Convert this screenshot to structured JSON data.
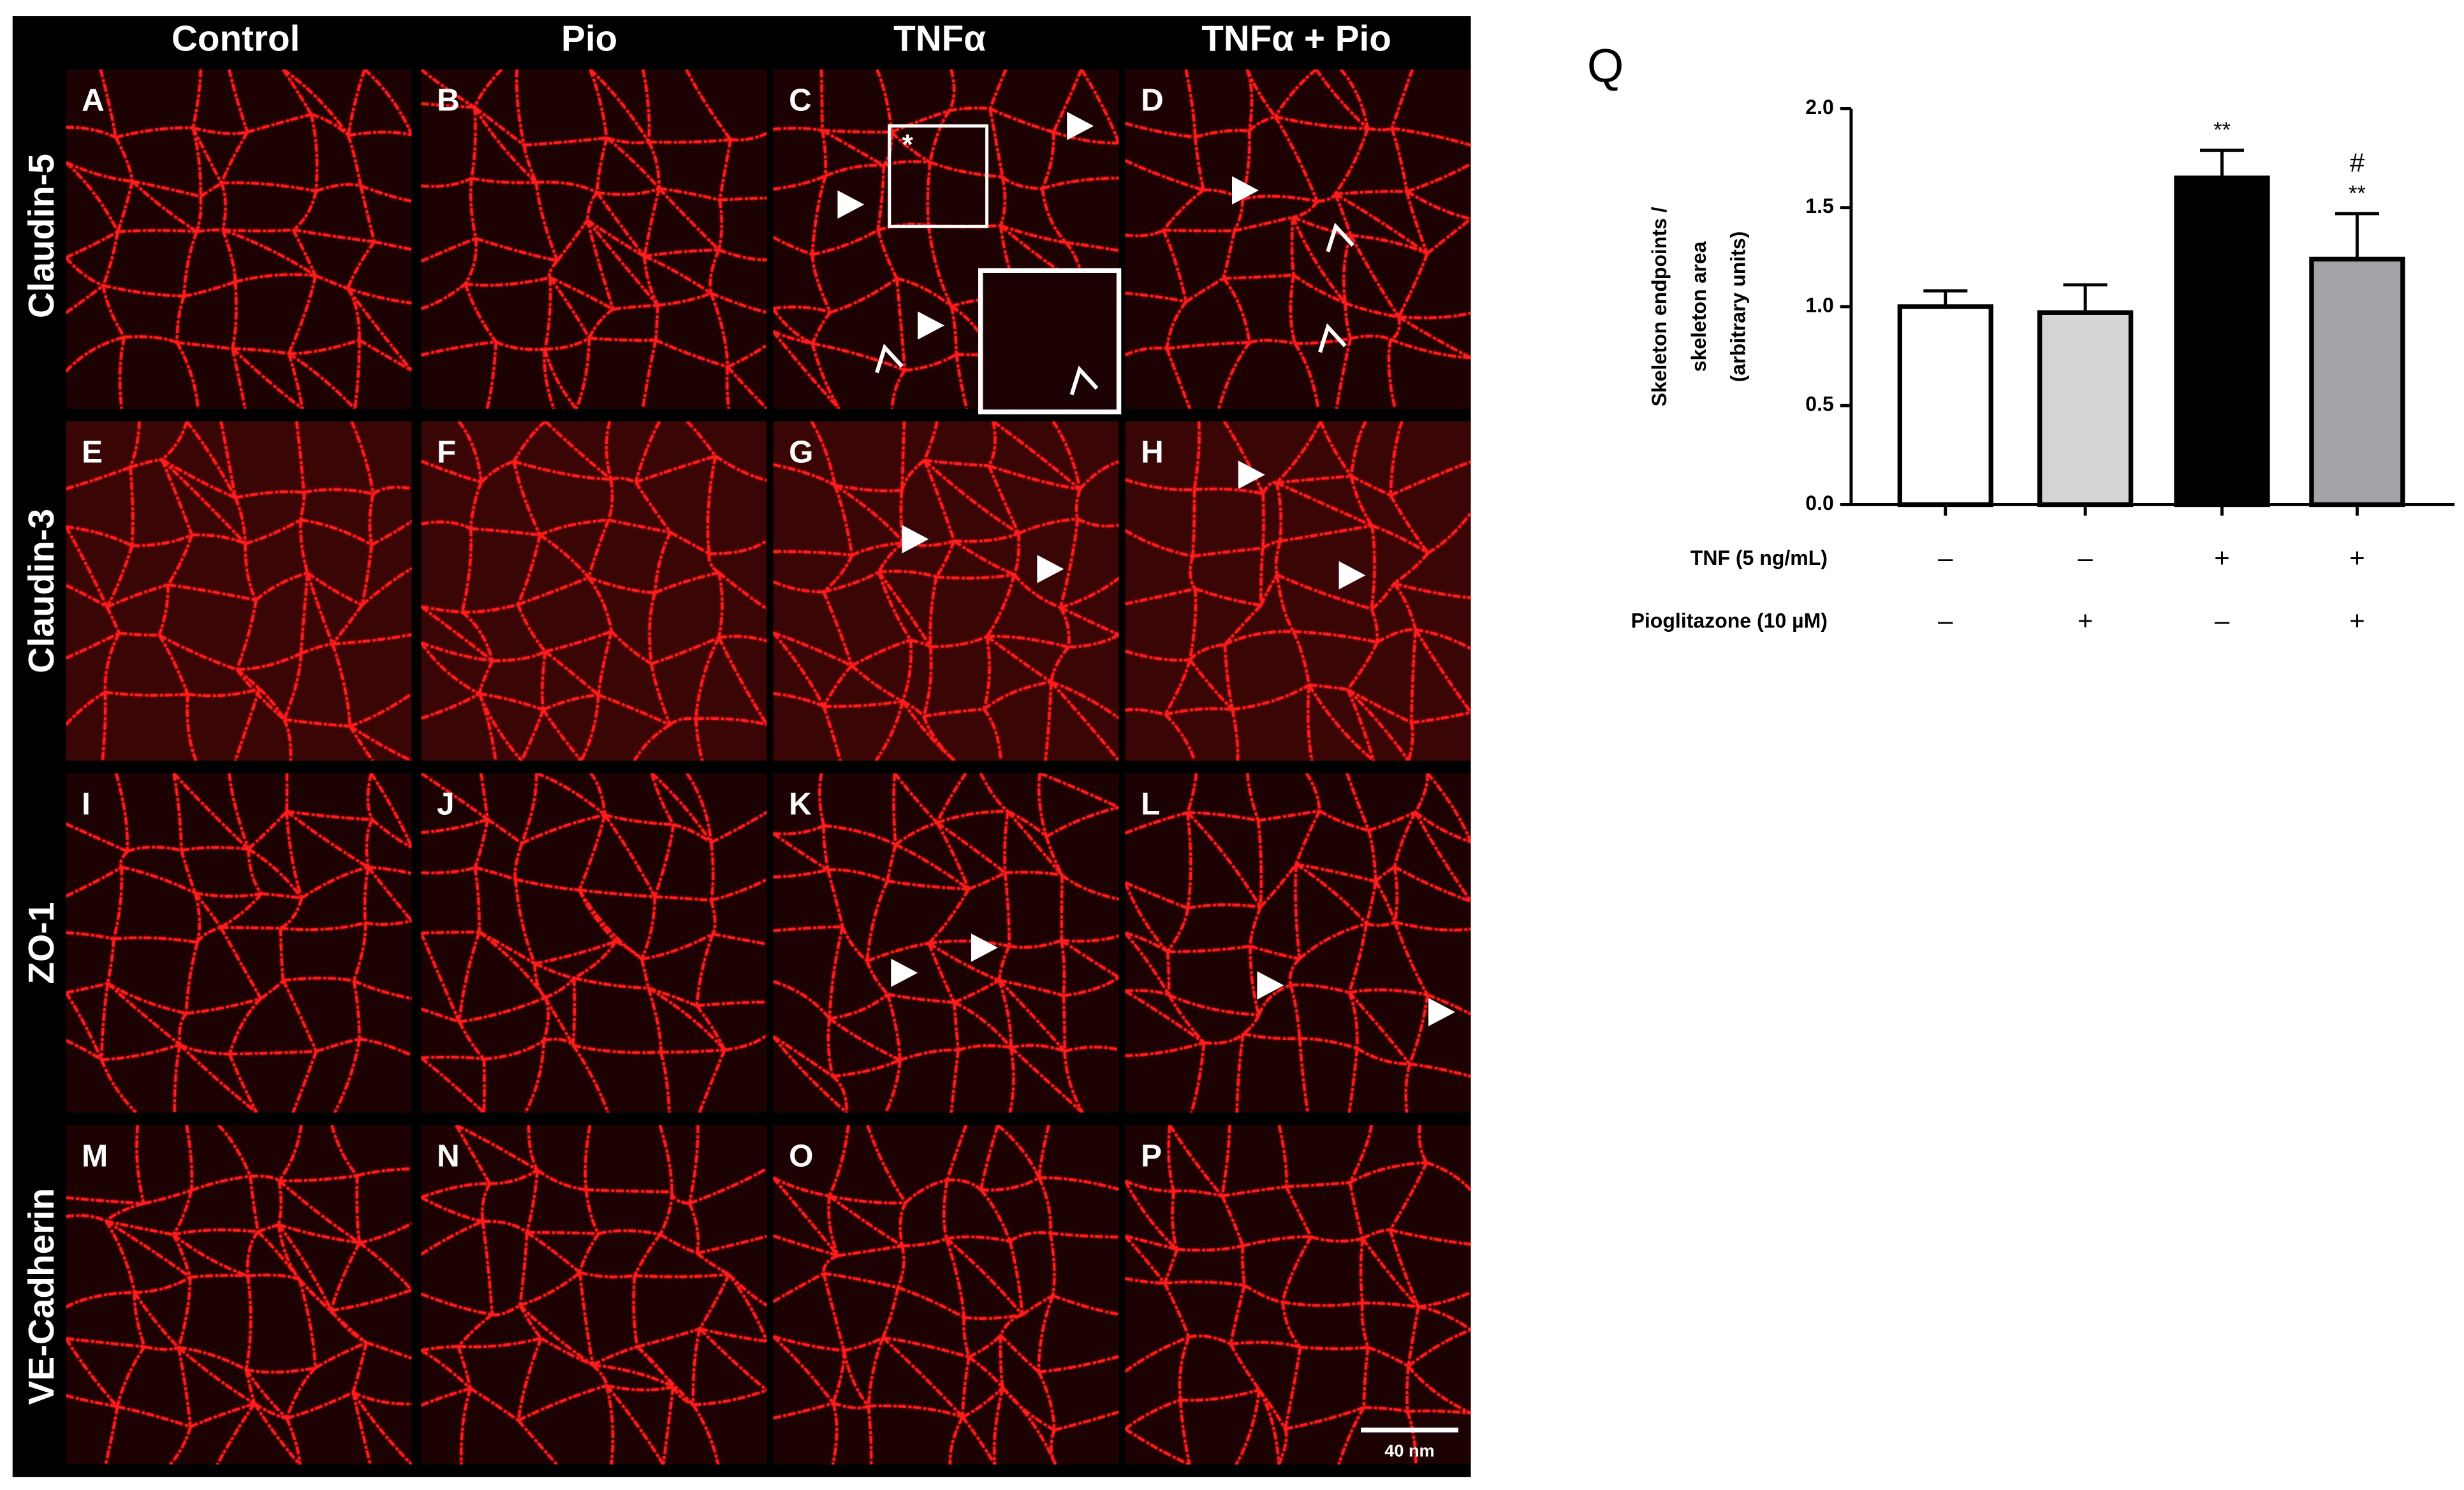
{
  "figure": {
    "columns": [
      "Control",
      "Pio",
      "TNFα",
      "TNFα + Pio"
    ],
    "rows": [
      "Claudin-5",
      "Claudin-3",
      "ZO-1",
      "VE-Cadherin"
    ],
    "panels": [
      [
        "A",
        "B",
        "C",
        "D"
      ],
      [
        "E",
        "F",
        "G",
        "H"
      ],
      [
        "I",
        "J",
        "K",
        "L"
      ],
      [
        "M",
        "N",
        "O",
        "P"
      ]
    ],
    "inset_marker": "*",
    "scale_bar": "40 nm"
  },
  "chart_data": {
    "type": "bar",
    "panel_label": "Q",
    "ylabel": [
      "Skeleton endpoints /",
      "skeleton area",
      "(arbitrary units)"
    ],
    "categories": [
      null,
      null,
      null,
      null
    ],
    "values": [
      1.0,
      0.97,
      1.65,
      1.24
    ],
    "errors": [
      0.08,
      0.14,
      0.14,
      0.23
    ],
    "colors": [
      "#ffffff",
      "#d4d4d4",
      "#000000",
      "#a3a3a8"
    ],
    "annotations": [
      null,
      null,
      [
        "**"
      ],
      [
        "#",
        "**"
      ]
    ],
    "conditions": [
      {
        "label": "TNF (5 ng/mL)",
        "values": [
          "–",
          "–",
          "+",
          "+"
        ]
      },
      {
        "label": "Pioglitazone (10 µM)",
        "values": [
          "–",
          "+",
          "–",
          "+"
        ]
      }
    ],
    "ylim": [
      0,
      2
    ],
    "yticks": [
      {
        "value": 0,
        "label": "0.0"
      },
      {
        "value": 0.5,
        "label": "0.5"
      },
      {
        "value": 1,
        "label": "1.0"
      },
      {
        "value": 1.5,
        "label": "1.5"
      },
      {
        "value": 2,
        "label": "2.0"
      }
    ]
  }
}
